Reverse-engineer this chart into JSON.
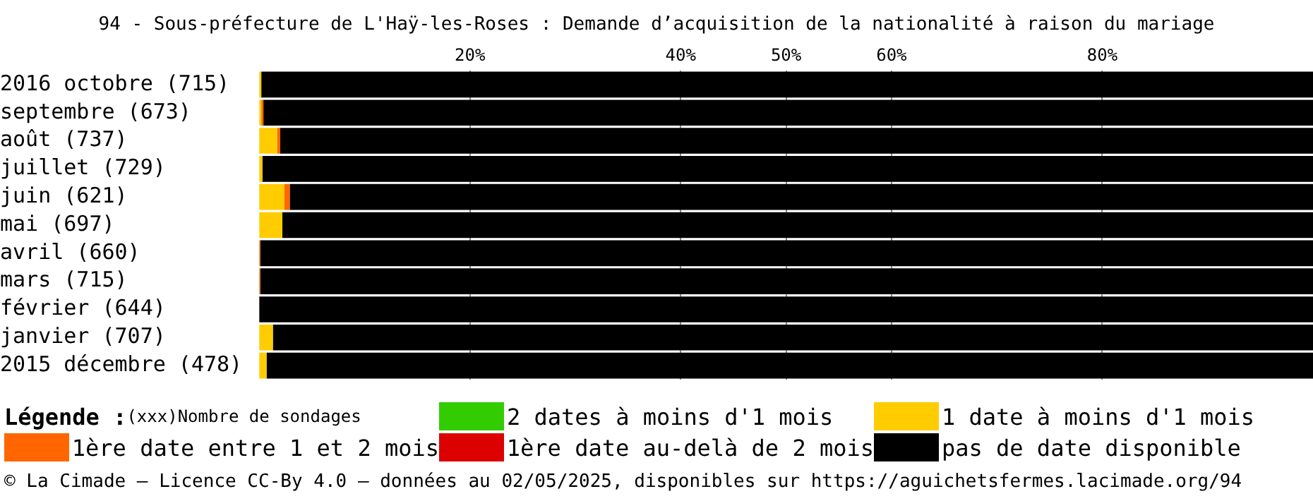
{
  "chart_data": {
    "type": "bar",
    "orientation": "horizontal",
    "stacked": true,
    "title": "94 - Sous-préfecture de L'Haÿ-les-Roses : Demande d’acquisition de la nationalité à raison du mariage",
    "categories": [
      "2016 octobre (715)",
      "septembre (673)",
      "août (737)",
      "juillet (729)",
      "juin (621)",
      "mai (697)",
      "avril (660)",
      "mars (715)",
      "février (644)",
      "janvier (707)",
      "2015 décembre (478)"
    ],
    "series": [
      {
        "name": "2 dates à moins d'1 mois",
        "color": "#33cc00",
        "values": [
          0,
          0,
          0,
          0,
          0,
          0,
          0,
          0,
          0,
          0,
          0
        ]
      },
      {
        "name": "1 date à moins d'1 mois",
        "color": "#ffcc00",
        "values": [
          0.2,
          0.2,
          1.7,
          0.3,
          2.4,
          2.2,
          0,
          0,
          0,
          1.3,
          0.7
        ]
      },
      {
        "name": "1ère date entre 1 et 2 mois",
        "color": "#ff6600",
        "values": [
          0,
          0.2,
          0.3,
          0,
          0.5,
          0,
          0.1,
          0.1,
          0,
          0,
          0
        ]
      },
      {
        "name": "1ère date au-delà de 2 mois",
        "color": "#dd0000",
        "values": [
          0,
          0,
          0,
          0,
          0,
          0,
          0,
          0,
          0,
          0,
          0
        ]
      },
      {
        "name": "pas de date disponible",
        "color": "#000000",
        "values": [
          99.8,
          99.6,
          98,
          99.7,
          97.1,
          97.8,
          99.9,
          99.9,
          100,
          98.7,
          99.3
        ]
      }
    ],
    "xlim": [
      0,
      100
    ],
    "xticks": [
      {
        "value": 20,
        "label": "20%"
      },
      {
        "value": 40,
        "label": "40%"
      },
      {
        "value": 50,
        "label": "50%"
      },
      {
        "value": 60,
        "label": "60%"
      },
      {
        "value": 80,
        "label": "80%"
      }
    ],
    "grid": "x",
    "legend": "bottom",
    "legend_title": "Légende :",
    "annotations": [
      "(xxx)Nombre de sondages",
      "© La Cimade — Licence CC-By 4.0 — données au 02/05/2025, disponibles sur https://aguichetsfermes.lacimade.org/94"
    ]
  }
}
